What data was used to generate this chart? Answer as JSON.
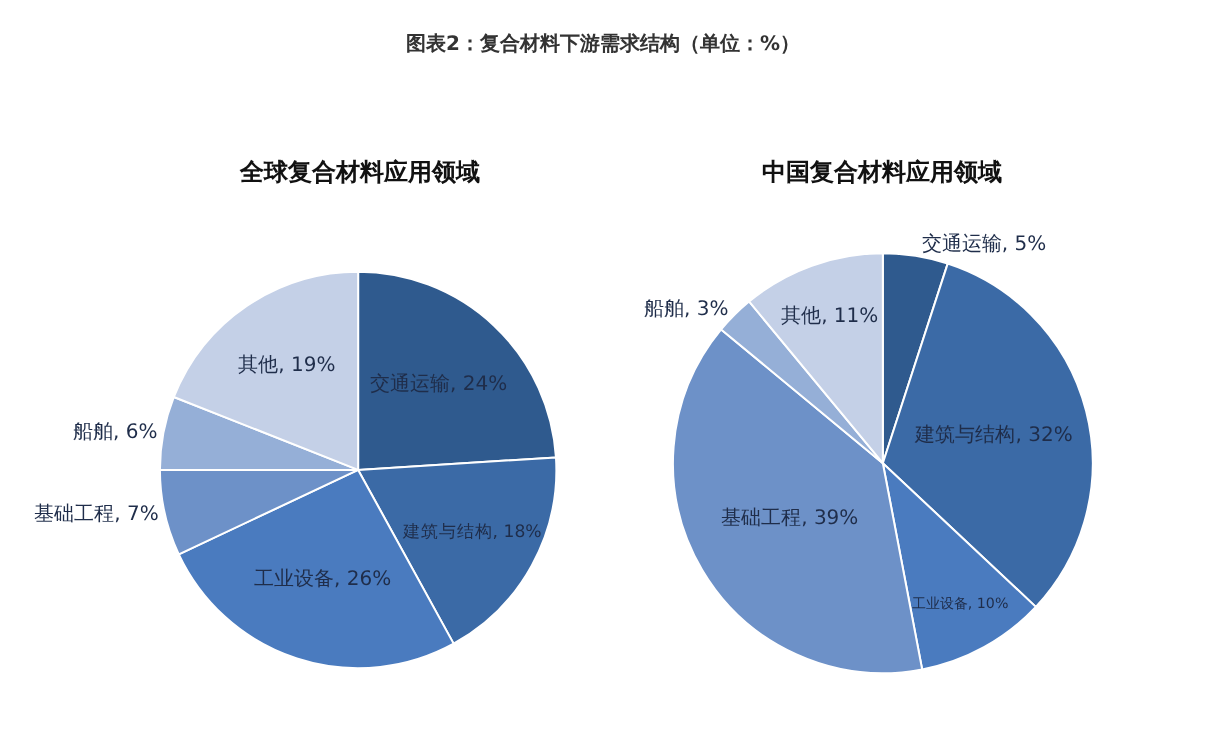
{
  "chart_data": [
    {
      "type": "pie",
      "title": "全球复合材料应用领域",
      "annotations": [
        "图表2：复合材料下游需求结构（单位：%）"
      ],
      "categories": [
        "交通运输",
        "建筑与结构",
        "工业设备",
        "基础工程",
        "船舶",
        "其他"
      ],
      "values": [
        24,
        18,
        26,
        7,
        6,
        19
      ],
      "value_labels": [
        "24%",
        "18%",
        "26%",
        "7%",
        "6%",
        "19%"
      ],
      "colors": [
        "#2f5a8e",
        "#3b6aa6",
        "#4a7bbf",
        "#6d91c8",
        "#95afd7",
        "#c4d0e7"
      ]
    },
    {
      "type": "pie",
      "title": "中国复合材料应用领域",
      "categories": [
        "交通运输",
        "建筑与结构",
        "工业设备",
        "基础工程",
        "船舶",
        "其他"
      ],
      "values": [
        5,
        32,
        10,
        39,
        3,
        11
      ],
      "value_labels": [
        "5%",
        "32%",
        "10%",
        "39%",
        "3%",
        "11%"
      ],
      "colors": [
        "#2f5a8e",
        "#3b6aa6",
        "#4a7bbf",
        "#6d91c8",
        "#95afd7",
        "#c4d0e7"
      ]
    }
  ]
}
